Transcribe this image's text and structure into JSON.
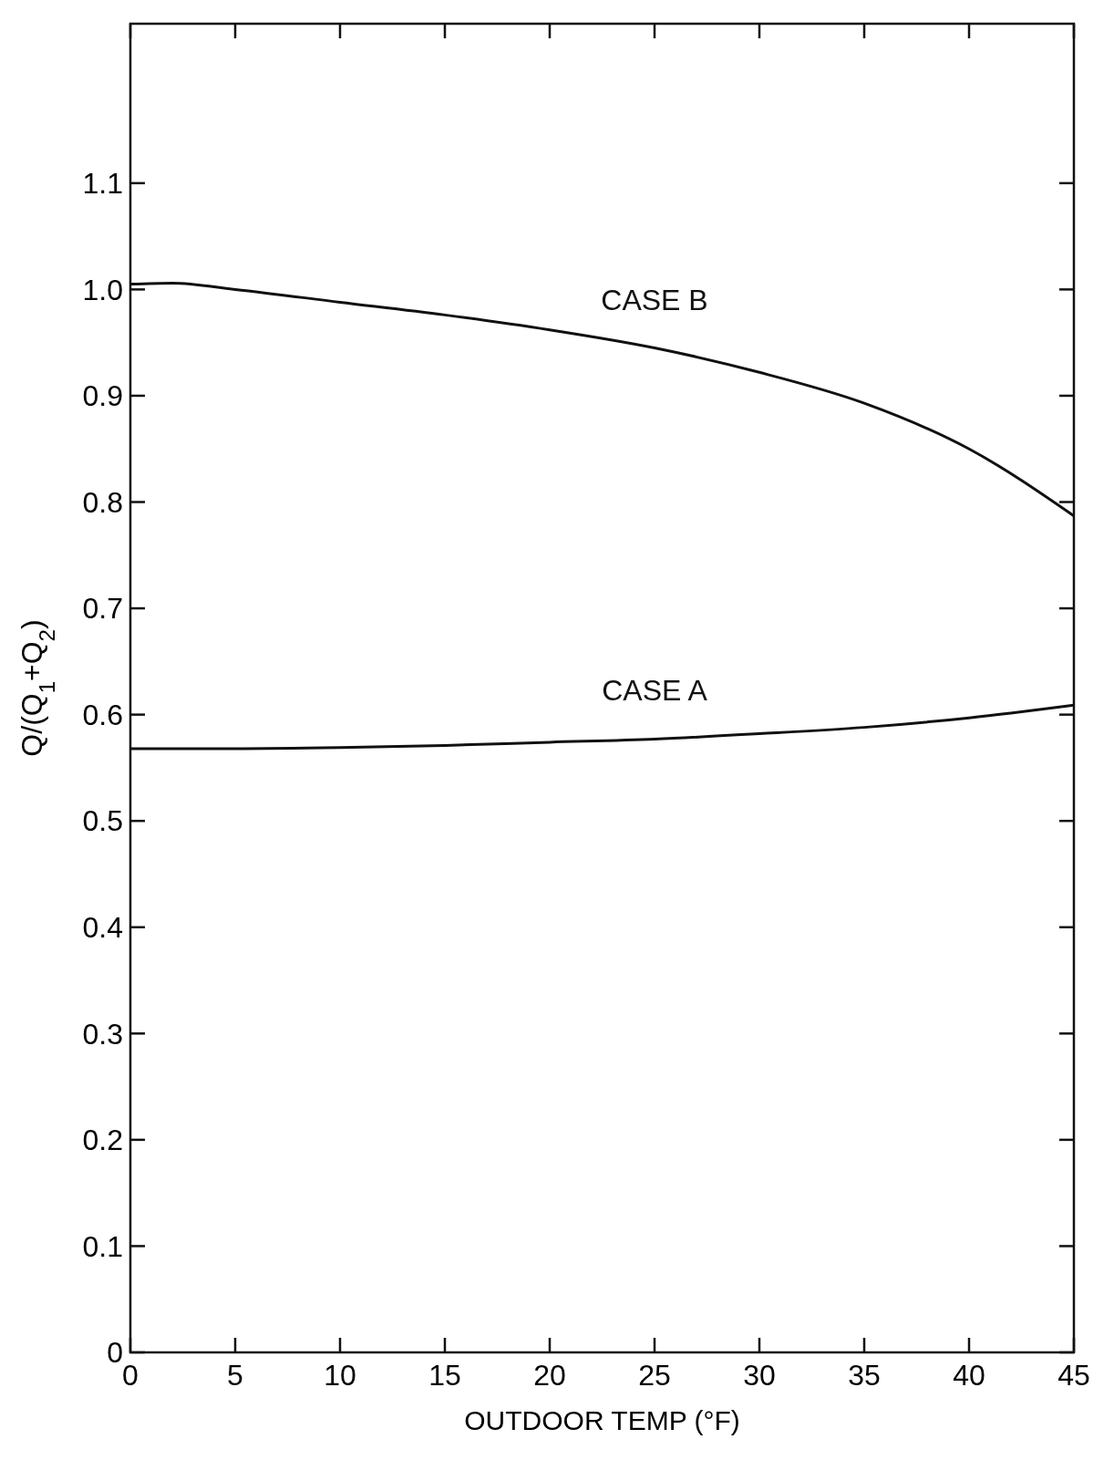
{
  "chart_data": {
    "type": "line",
    "xlabel": "OUTDOOR TEMP (°F)",
    "ylabel": "Q/(Q$_{1}$+Q$_{2}$)",
    "x": [
      0,
      2,
      5,
      10,
      15,
      20,
      25,
      30,
      35,
      40,
      45
    ],
    "series": [
      {
        "name": "CASE B",
        "color": "#111111",
        "values": [
          1.005,
          1.006,
          1.0,
          0.988,
          0.976,
          0.962,
          0.945,
          0.922,
          0.893,
          0.85,
          0.787
        ]
      },
      {
        "name": "CASE A",
        "color": "#111111",
        "values": [
          0.568,
          0.568,
          0.568,
          0.569,
          0.571,
          0.574,
          0.577,
          0.582,
          0.588,
          0.597,
          0.609
        ]
      }
    ],
    "xlim": [
      0,
      45
    ],
    "xticks": [
      0,
      5,
      10,
      15,
      20,
      25,
      30,
      35,
      40,
      45
    ],
    "ylim": [
      0,
      1.25
    ],
    "yticks": [
      0,
      0.1,
      0.2,
      0.3,
      0.4,
      0.5,
      0.6,
      0.7,
      0.8,
      0.9,
      {
        "value": 1.0,
        "label": "1.0"
      },
      1.1
    ],
    "grid": false,
    "line_style": "solid",
    "marker": "none"
  }
}
